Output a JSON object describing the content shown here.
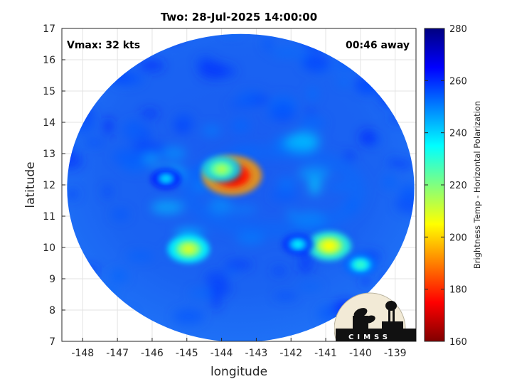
{
  "chart_data": {
    "type": "heatmap",
    "title": "Two: 28-Jul-2025 14:00:00",
    "xlabel": "longitude",
    "ylabel": "latitude",
    "xlim": [
      -148.6,
      -138.4
    ],
    "ylim": [
      7,
      17
    ],
    "xticks": [
      "-148",
      "-147",
      "-146",
      "-145",
      "-144",
      "-143",
      "-142",
      "-141",
      "-140",
      "-139"
    ],
    "yticks": [
      "7",
      "8",
      "9",
      "10",
      "11",
      "12",
      "13",
      "14",
      "15",
      "16",
      "17"
    ],
    "grid": true,
    "annotations": {
      "vmax": "Vmax: 32 kts",
      "time_away": "00:46 away"
    },
    "swath": {
      "center_lon": -143.45,
      "center_lat": 11.9,
      "radius_deg": 5.0,
      "background_value": 258
    },
    "features": [
      {
        "lon": -143.7,
        "lat": 12.3,
        "value": 168
      },
      {
        "lon": -144.0,
        "lat": 12.5,
        "value": 215
      },
      {
        "lon": -140.9,
        "lat": 10.05,
        "value": 205
      },
      {
        "lon": -144.95,
        "lat": 9.95,
        "value": 210
      },
      {
        "lon": -145.6,
        "lat": 12.2,
        "value": 238
      },
      {
        "lon": -141.8,
        "lat": 10.1,
        "value": 235
      },
      {
        "lon": -140.0,
        "lat": 9.45,
        "value": 228
      }
    ],
    "colorbar": {
      "label": "Brightness Temp - Horizontal Polarization",
      "range": [
        160,
        280
      ],
      "ticks": [
        "160",
        "180",
        "200",
        "220",
        "240",
        "260",
        "280"
      ],
      "colors": [
        "#800000",
        "#ff0000",
        "#ff8000",
        "#ffff00",
        "#80ff80",
        "#00ffff",
        "#0080ff",
        "#0000ff",
        "#000080"
      ]
    },
    "logo": {
      "text": "CIMSS"
    }
  }
}
